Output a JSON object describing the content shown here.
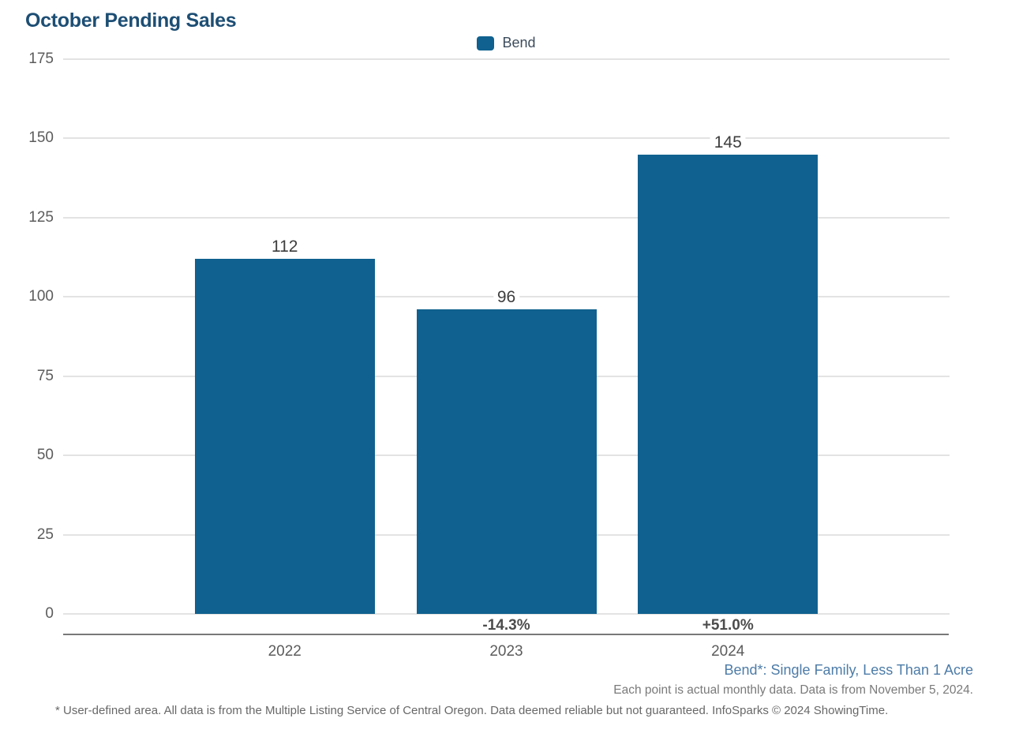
{
  "chart_data": {
    "type": "bar",
    "title": "October Pending Sales",
    "categories": [
      "2022",
      "2023",
      "2024"
    ],
    "series": [
      {
        "name": "Bend",
        "values": [
          112,
          96,
          145
        ]
      }
    ],
    "value_labels": [
      "112",
      "96",
      "145"
    ],
    "pct_change_labels": [
      "",
      "-14.3%",
      "+51.0%"
    ],
    "yticks": [
      0,
      25,
      50,
      75,
      100,
      125,
      150,
      175
    ],
    "ylim": [
      0,
      175
    ],
    "xlabel": "",
    "ylabel": "",
    "grid": true,
    "legend_position": "top-center",
    "bar_color": "#10618f"
  },
  "legend": {
    "label": "Bend"
  },
  "colors": {
    "bar": "#10618f",
    "title": "#1d4e74",
    "footnote_blue": "#4d7ca8",
    "gridline": "#e3e3e3",
    "axis_line": "#787878"
  },
  "footnotes": {
    "series_definition": "Bend*: Single Family, Less Than 1 Acre",
    "data_note": "Each point is actual monthly data. Data is from November 5, 2024.",
    "disclaimer": "* User-defined area. All data is from the Multiple Listing Service of Central Oregon. Data deemed reliable but not guaranteed. InfoSparks © 2024 ShowingTime."
  }
}
